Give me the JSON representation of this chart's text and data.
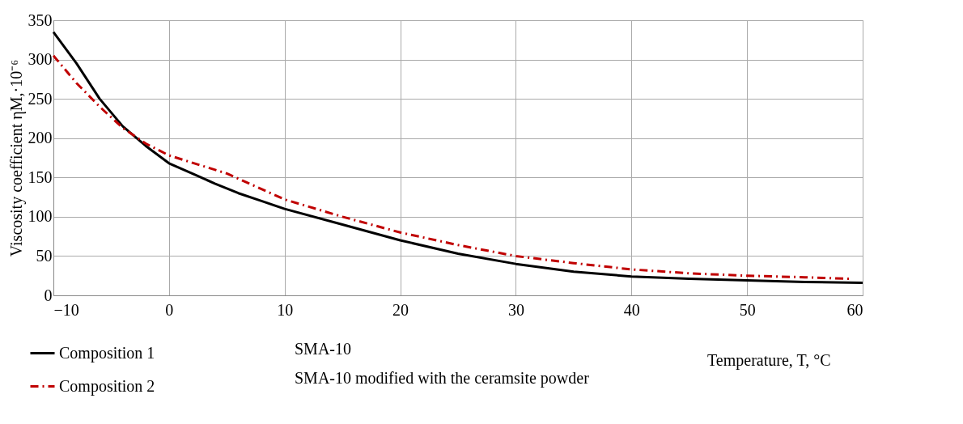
{
  "chart_data": {
    "type": "line",
    "xlabel": "Temperature, T, °C",
    "ylabel": "Viscosity coefficient ηM,·10⁻⁶",
    "xlim": [
      -10,
      60
    ],
    "xticks": [
      -10,
      0,
      10,
      20,
      30,
      40,
      50,
      60
    ],
    "ylim": [
      0,
      350
    ],
    "yticks": [
      0,
      50,
      100,
      150,
      200,
      250,
      300,
      350
    ],
    "grid": true,
    "legend": "bottom left",
    "marker": "none",
    "annotations": [
      "SMA-10",
      "SMA-10 modified with the ceramsite powder"
    ],
    "series": [
      {
        "name": "Composition 1",
        "color": "#000000",
        "line_style": "solid",
        "x": [
          -10,
          -8,
          -6,
          -4,
          -2,
          0,
          2,
          4,
          6,
          8,
          10,
          15,
          20,
          25,
          30,
          35,
          40,
          45,
          50,
          55,
          60
        ],
        "values": [
          335,
          295,
          250,
          215,
          190,
          168,
          155,
          142,
          130,
          120,
          110,
          90,
          70,
          53,
          40,
          30,
          24,
          21,
          19,
          17,
          16
        ]
      },
      {
        "name": "Composition 2",
        "color": "#c00000",
        "line_style": "dashdot",
        "x": [
          -10,
          -8,
          -6,
          -4,
          -2,
          0,
          5,
          10,
          15,
          20,
          25,
          30,
          35,
          40,
          45,
          50,
          55,
          59
        ],
        "values": [
          305,
          270,
          240,
          213,
          193,
          178,
          155,
          122,
          100,
          80,
          64,
          50,
          41,
          33,
          28,
          25,
          23,
          21
        ]
      }
    ]
  }
}
